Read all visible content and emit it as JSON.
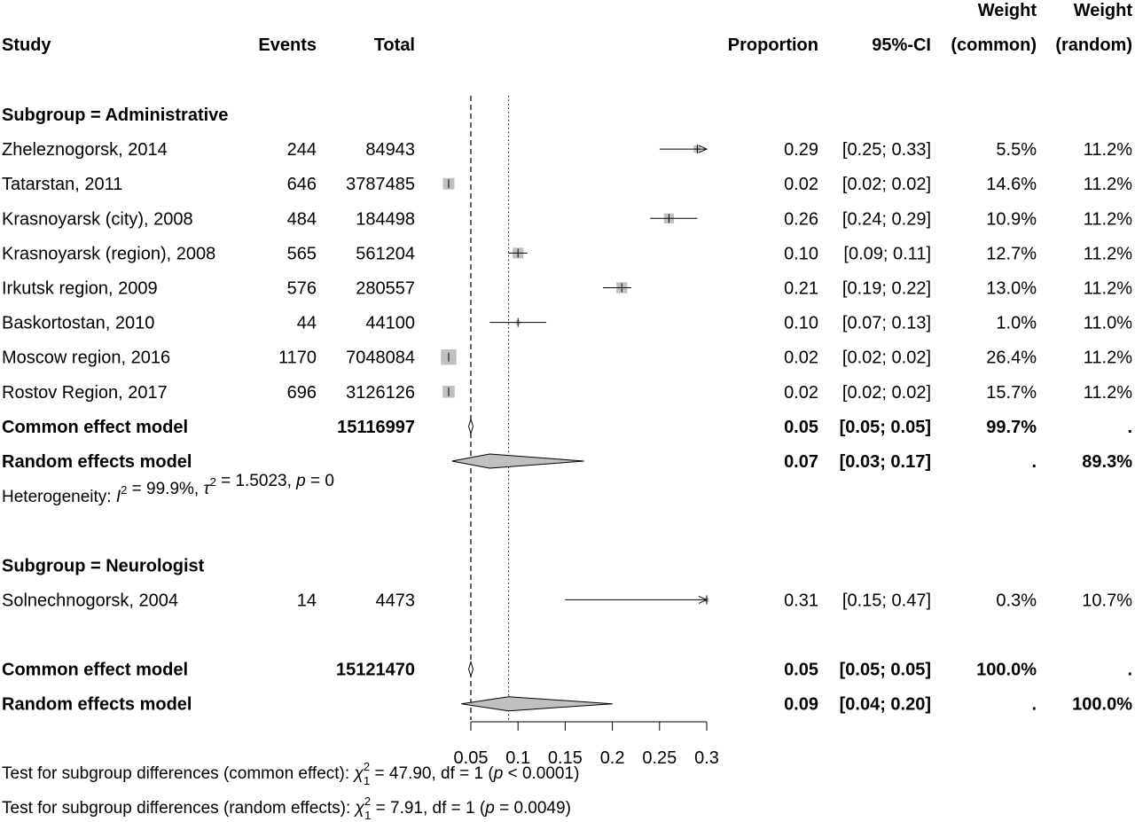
{
  "header": {
    "study": "Study",
    "events": "Events",
    "total": "Total",
    "proportion": "Proportion",
    "ci": "95%-CI",
    "weight": "Weight",
    "weight_common": "(common)",
    "weight_random": "(random)"
  },
  "chart_data": {
    "type": "forest",
    "x_ticks": [
      0.05,
      0.1,
      0.15,
      0.2,
      0.25,
      0.3
    ],
    "x_tick_labels": [
      "0.05",
      "0.1",
      "0.15",
      "0.2",
      "0.25",
      "0.3"
    ],
    "xlim": [
      0.05,
      0.3
    ],
    "reference_lines": {
      "common_effect": 0.05,
      "random_effect": 0.09
    },
    "subgroups": [
      {
        "label": "Subgroup = Administrative",
        "studies": [
          {
            "study": "Zheleznogorsk, 2014",
            "events": "244",
            "total": "84943",
            "prop": 0.29,
            "lower": 0.25,
            "upper": 0.33,
            "prop_text": "0.29",
            "ci_text": "[0.25; 0.33]",
            "w_common": "5.5%",
            "w_random": "11.2%",
            "w": 5.5
          },
          {
            "study": "Tatarstan, 2011",
            "events": "646",
            "total": "3787485",
            "prop": 0.02,
            "lower": 0.02,
            "upper": 0.02,
            "prop_text": "0.02",
            "ci_text": "[0.02; 0.02]",
            "w_common": "14.6%",
            "w_random": "11.2%",
            "w": 14.6
          },
          {
            "study": "Krasnoyarsk (city), 2008",
            "events": "484",
            "total": "184498",
            "prop": 0.26,
            "lower": 0.24,
            "upper": 0.29,
            "prop_text": "0.26",
            "ci_text": "[0.24; 0.29]",
            "w_common": "10.9%",
            "w_random": "11.2%",
            "w": 10.9
          },
          {
            "study": "Krasnoyarsk (region), 2008",
            "events": "565",
            "total": "561204",
            "prop": 0.1,
            "lower": 0.09,
            "upper": 0.11,
            "prop_text": "0.10",
            "ci_text": "[0.09; 0.11]",
            "w_common": "12.7%",
            "w_random": "11.2%",
            "w": 12.7
          },
          {
            "study": "Irkutsk region, 2009",
            "events": "576",
            "total": "280557",
            "prop": 0.21,
            "lower": 0.19,
            "upper": 0.22,
            "prop_text": "0.21",
            "ci_text": "[0.19; 0.22]",
            "w_common": "13.0%",
            "w_random": "11.2%",
            "w": 13.0
          },
          {
            "study": "Baskortostan, 2010",
            "events": "44",
            "total": "44100",
            "prop": 0.1,
            "lower": 0.07,
            "upper": 0.13,
            "prop_text": "0.10",
            "ci_text": "[0.07; 0.13]",
            "w_common": "1.0%",
            "w_random": "11.0%",
            "w": 1.0
          },
          {
            "study": "Moscow region, 2016",
            "events": "1170",
            "total": "7048084",
            "prop": 0.02,
            "lower": 0.02,
            "upper": 0.02,
            "prop_text": "0.02",
            "ci_text": "[0.02; 0.02]",
            "w_common": "26.4%",
            "w_random": "11.2%",
            "w": 26.4
          },
          {
            "study": "Rostov Region, 2017",
            "events": "696",
            "total": "3126126",
            "prop": 0.02,
            "lower": 0.02,
            "upper": 0.02,
            "prop_text": "0.02",
            "ci_text": "[0.02; 0.02]",
            "w_common": "15.7%",
            "w_random": "11.2%",
            "w": 15.7
          }
        ],
        "common": {
          "label": "Common effect model",
          "total": "15116997",
          "est": 0.05,
          "lower": 0.05,
          "upper": 0.05,
          "prop_text": "0.05",
          "ci_text": "[0.05; 0.05]",
          "w_common": "99.7%",
          "w_random": "."
        },
        "random": {
          "label": "Random effects model",
          "est": 0.07,
          "lower": 0.03,
          "upper": 0.17,
          "prop_text": "0.07",
          "ci_text": "[0.03; 0.17]",
          "w_common": ".",
          "w_random": "89.3%"
        },
        "heterogeneity": {
          "prefix": "Heterogeneity: ",
          "i2": " = 99.9%, ",
          "tau2": " = 1.5023, ",
          "p": " = 0"
        }
      },
      {
        "label": "Subgroup = Neurologist",
        "studies": [
          {
            "study": "Solnechnogorsk, 2004",
            "events": "14",
            "total": "4473",
            "prop": 0.31,
            "lower": 0.15,
            "upper": 0.47,
            "prop_text": "0.31",
            "ci_text": "[0.15; 0.47]",
            "w_common": "0.3%",
            "w_random": "10.7%",
            "w": 0.3
          }
        ]
      }
    ],
    "overall": {
      "common": {
        "label": "Common effect model",
        "total": "15121470",
        "est": 0.05,
        "lower": 0.05,
        "upper": 0.05,
        "prop_text": "0.05",
        "ci_text": "[0.05; 0.05]",
        "w_common": "100.0%",
        "w_random": "."
      },
      "random": {
        "label": "Random effects model",
        "est": 0.09,
        "lower": 0.04,
        "upper": 0.2,
        "prop_text": "0.09",
        "ci_text": "[0.04; 0.20]",
        "w_common": ".",
        "w_random": "100.0%"
      }
    },
    "subgroup_tests": [
      {
        "prefix": "Test for subgroup differences (common effect): ",
        "chi_sub": "1",
        "chi_sup": "2",
        "stat": " = 47.90, df = 1 (",
        "p": " < 0.0001)"
      },
      {
        "prefix": "Test for subgroup differences (random effects): ",
        "chi_sub": "1",
        "chi_sup": "2",
        "stat": " = 7.91, df = 1 (",
        "p": " = 0.0049)"
      }
    ]
  }
}
